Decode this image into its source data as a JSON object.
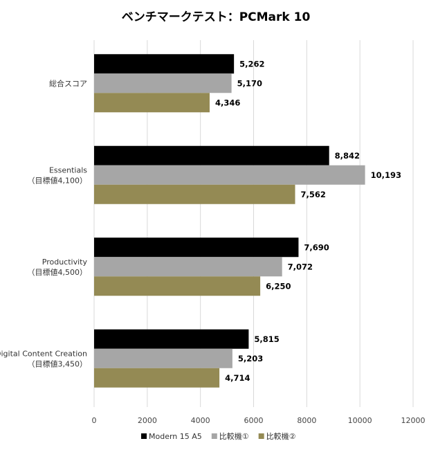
{
  "chart_data": {
    "type": "bar",
    "orientation": "horizontal",
    "title": "ベンチマークテスト：PCMark 10",
    "categories": [
      [
        "総合スコア"
      ],
      [
        "Essentials",
        "（目標値4,100）"
      ],
      [
        "Productivity",
        "（目標値4,500）"
      ],
      [
        "Digital Content Creation",
        "（目標値3,450）"
      ]
    ],
    "series": [
      {
        "name": "Modern 15 A5",
        "color": "#000000",
        "values": [
          5262,
          8842,
          7690,
          5815
        ],
        "labels": [
          "5,262",
          "8,842",
          "7,690",
          "5,815"
        ]
      },
      {
        "name": "比較機①",
        "color": "#a6a6a6",
        "values": [
          5170,
          10193,
          7072,
          5203
        ],
        "labels": [
          "5,170",
          "10,193",
          "7,072",
          "5,203"
        ]
      },
      {
        "name": "比較機②",
        "color": "#948a54",
        "values": [
          4346,
          7562,
          6250,
          4714
        ],
        "labels": [
          "4,346",
          "7,562",
          "6,250",
          "4,714"
        ]
      }
    ],
    "xlim": [
      0,
      12000
    ],
    "xticks": [
      "0",
      "2000",
      "4000",
      "6000",
      "8000",
      "10000",
      "12000"
    ],
    "xtick_values": [
      0,
      2000,
      4000,
      6000,
      8000,
      10000,
      12000
    ],
    "grid": true,
    "legend_position": "bottom"
  }
}
